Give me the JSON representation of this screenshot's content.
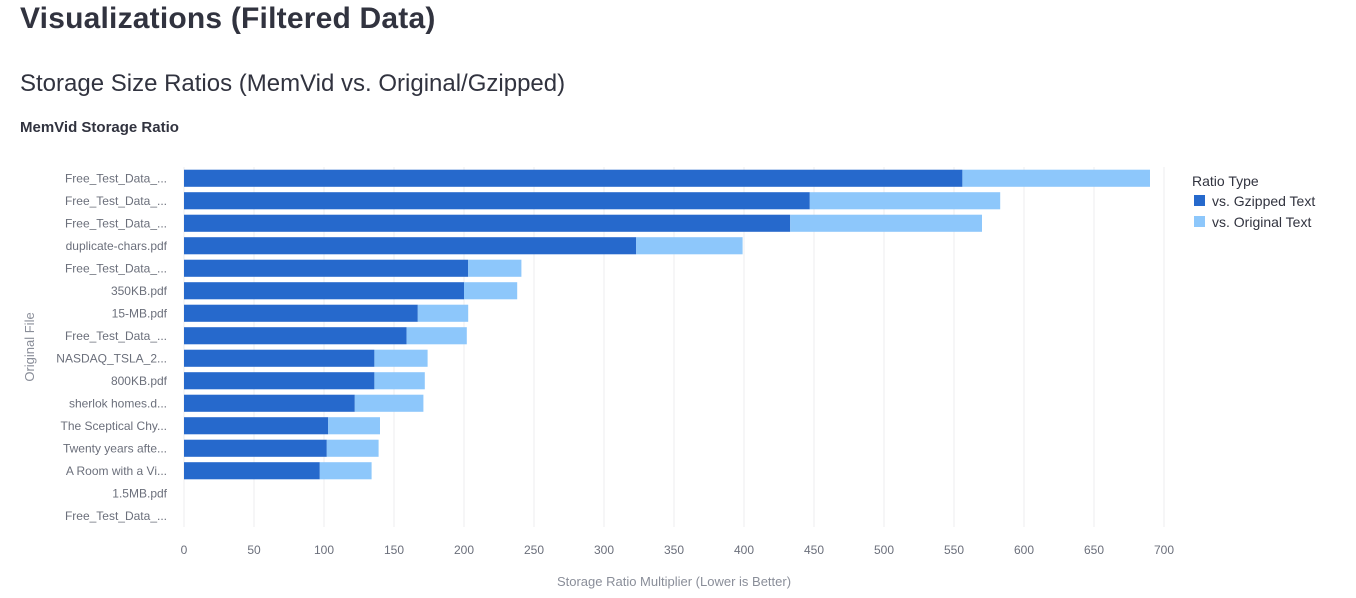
{
  "header": {
    "title": "Visualizations (Filtered Data)",
    "subtitle": "Storage Size Ratios (MemVid vs. Original/Gzipped)",
    "chart_heading": "MemVid Storage Ratio"
  },
  "chart_data": {
    "type": "bar",
    "orientation": "horizontal",
    "stacked": true,
    "title": "MemVid Storage Ratio",
    "xlabel": "Storage Ratio Multiplier (Lower is Better)",
    "ylabel": "Original File",
    "xlim": [
      0,
      700
    ],
    "xticks": [
      0,
      50,
      100,
      150,
      200,
      250,
      300,
      350,
      400,
      450,
      500,
      550,
      600,
      650,
      700
    ],
    "grid": true,
    "legend": {
      "title": "Ratio Type",
      "placement": "right"
    },
    "categories": [
      "Free_Test_Data_...",
      "Free_Test_Data_...",
      "Free_Test_Data_...",
      "duplicate-chars.pdf",
      "Free_Test_Data_...",
      "350KB.pdf",
      "15-MB.pdf",
      "Free_Test_Data_...",
      "NASDAQ_TSLA_2...",
      "800KB.pdf",
      "sherlok homes.d...",
      "The Sceptical Chy...",
      "Twenty years afte...",
      "A Room with a Vi...",
      "1.5MB.pdf",
      "Free_Test_Data_..."
    ],
    "series": [
      {
        "name": "vs. Gzipped Text",
        "color": "#2669cc",
        "values": [
          556,
          447,
          433,
          323,
          203,
          200,
          167,
          159,
          136,
          136,
          122,
          103,
          102,
          97,
          0,
          0
        ]
      },
      {
        "name": "vs. Original Text",
        "color": "#8dc7fb",
        "values": [
          134,
          136,
          137,
          76,
          38,
          38,
          36,
          43,
          38,
          36,
          49,
          37,
          37,
          37,
          0,
          0
        ]
      }
    ]
  }
}
